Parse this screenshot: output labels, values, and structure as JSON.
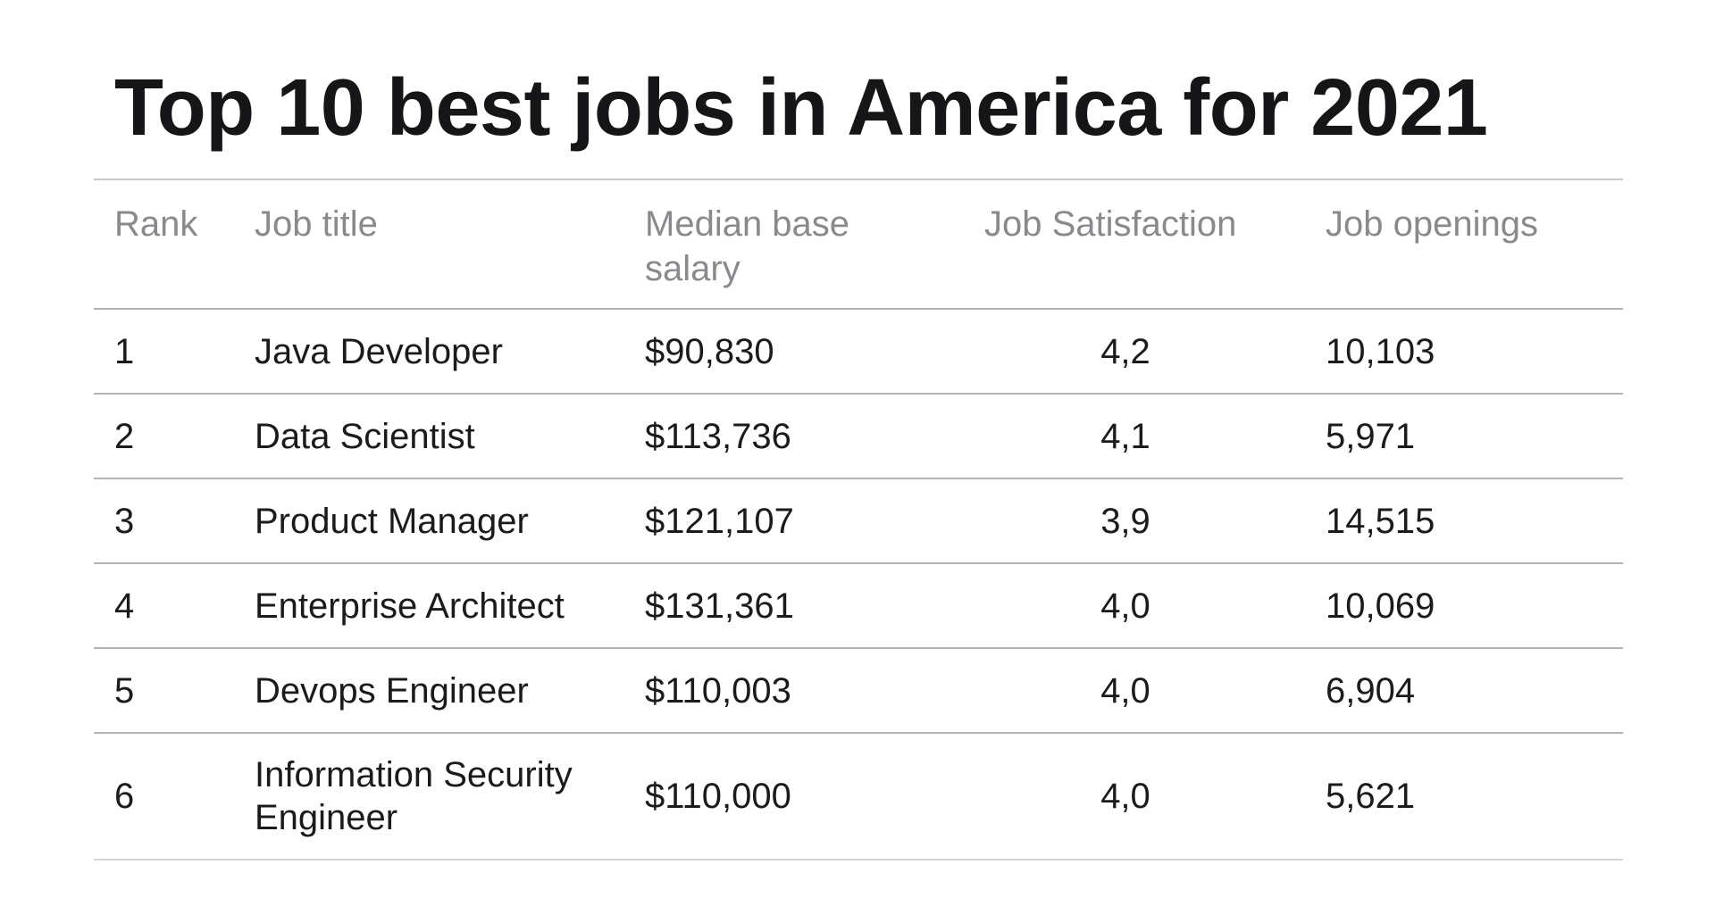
{
  "title": "Top 10 best jobs in America for 2021",
  "colors": {
    "background": "#ffffff",
    "title_text": "#161618",
    "body_text": "#1b1b1d",
    "header_text": "#8a8a8e",
    "rule_top": "#c9c9cb",
    "rule_inner": "#b3b3b5",
    "rule_bottom": "#d6d6d8"
  },
  "table": {
    "headers": [
      "Rank",
      "Job title",
      "Median base salary",
      "Job Satisfaction",
      "Job openings"
    ],
    "rows": [
      {
        "rank": "1",
        "job_title": "Java Developer",
        "median_base_salary": "$90,830",
        "job_satisfaction": "4,2",
        "job_openings": "10,103"
      },
      {
        "rank": "2",
        "job_title": "Data Scientist",
        "median_base_salary": "$113,736",
        "job_satisfaction": "4,1",
        "job_openings": "5,971"
      },
      {
        "rank": "3",
        "job_title": "Product Manager",
        "median_base_salary": "$121,107",
        "job_satisfaction": "3,9",
        "job_openings": "14,515"
      },
      {
        "rank": "4",
        "job_title": "Enterprise Architect",
        "median_base_salary": "$131,361",
        "job_satisfaction": "4,0",
        "job_openings": "10,069"
      },
      {
        "rank": "5",
        "job_title": "Devops Engineer",
        "median_base_salary": "$110,003",
        "job_satisfaction": "4,0",
        "job_openings": "6,904"
      },
      {
        "rank": "6",
        "job_title": "Information Security Engineer",
        "median_base_salary": "$110,000",
        "job_satisfaction": "4,0",
        "job_openings": "5,621"
      }
    ]
  },
  "chart_data": {
    "type": "table",
    "title": "Top 10 best jobs in America for 2021",
    "columns": [
      "Rank",
      "Job title",
      "Median base salary",
      "Job Satisfaction",
      "Job openings"
    ],
    "rows": [
      [
        1,
        "Java Developer",
        90830,
        4.2,
        10103
      ],
      [
        2,
        "Data Scientist",
        113736,
        4.1,
        5971
      ],
      [
        3,
        "Product Manager",
        121107,
        3.9,
        14515
      ],
      [
        4,
        "Enterprise Architect",
        131361,
        4.0,
        10069
      ],
      [
        5,
        "Devops Engineer",
        110003,
        4.0,
        6904
      ],
      [
        6,
        "Information Security Engineer",
        110000,
        4.0,
        5621
      ]
    ],
    "notes": "Decimal commas used for Job Satisfaction values (e.g. 4,2); salaries shown with $ prefix and thousands commas; 6 of 10 rows visible in screenshot"
  }
}
